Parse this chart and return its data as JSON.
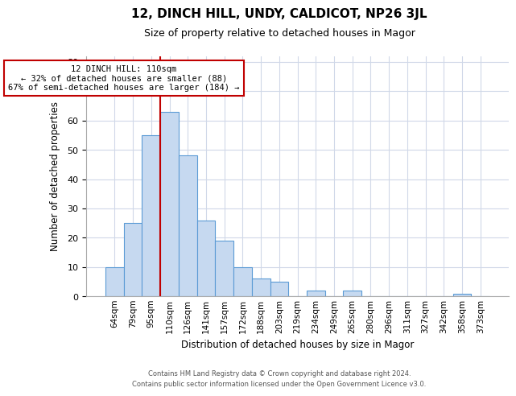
{
  "title": "12, DINCH HILL, UNDY, CALDICOT, NP26 3JL",
  "subtitle": "Size of property relative to detached houses in Magor",
  "xlabel": "Distribution of detached houses by size in Magor",
  "ylabel": "Number of detached properties",
  "categories": [
    "64sqm",
    "79sqm",
    "95sqm",
    "110sqm",
    "126sqm",
    "141sqm",
    "157sqm",
    "172sqm",
    "188sqm",
    "203sqm",
    "219sqm",
    "234sqm",
    "249sqm",
    "265sqm",
    "280sqm",
    "296sqm",
    "311sqm",
    "327sqm",
    "342sqm",
    "358sqm",
    "373sqm"
  ],
  "values": [
    10,
    25,
    55,
    63,
    48,
    26,
    19,
    10,
    6,
    5,
    0,
    2,
    0,
    2,
    0,
    0,
    0,
    0,
    0,
    1,
    0
  ],
  "bar_color": "#c6d9f0",
  "bar_edge_color": "#5b9bd5",
  "highlight_index": 3,
  "highlight_line_color": "#c00000",
  "ylim": [
    0,
    82
  ],
  "yticks": [
    0,
    10,
    20,
    30,
    40,
    50,
    60,
    70,
    80
  ],
  "annotation_title": "12 DINCH HILL: 110sqm",
  "annotation_line1": "← 32% of detached houses are smaller (88)",
  "annotation_line2": "67% of semi-detached houses are larger (184) →",
  "footer_line1": "Contains HM Land Registry data © Crown copyright and database right 2024.",
  "footer_line2": "Contains public sector information licensed under the Open Government Licence v3.0.",
  "background_color": "#ffffff",
  "grid_color": "#d0d8e8"
}
